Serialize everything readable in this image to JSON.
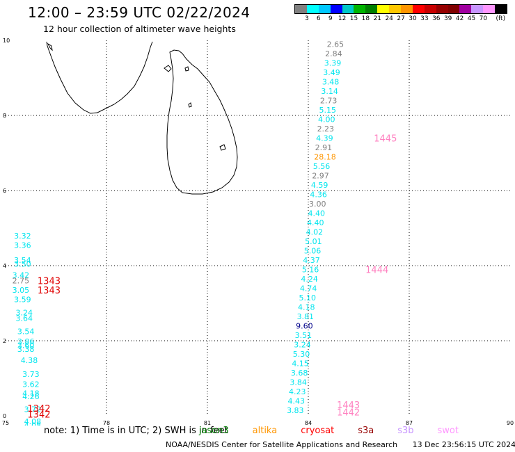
{
  "header": {
    "title": "12:00 – 23:59 UTC 02/22/2024",
    "subtitle": "12 hour collection of altimeter wave heights"
  },
  "colorbar": {
    "colors": [
      "#808080",
      "#00ffff",
      "#00c8ff",
      "#0000ff",
      "#00c8c8",
      "#00b400",
      "#008000",
      "#ffff00",
      "#ffc800",
      "#ff9600",
      "#ff0000",
      "#c80000",
      "#960000",
      "#800000",
      "#a000a0",
      "#c896ff",
      "#ff96ff",
      "#000000"
    ],
    "labels": [
      "3",
      "6",
      "9",
      "12",
      "15",
      "18",
      "21",
      "24",
      "27",
      "30",
      "33",
      "36",
      "39",
      "42",
      "45",
      "70"
    ],
    "unit": "(ft)"
  },
  "axes": {
    "x_ticks": [
      "75",
      "78",
      "81",
      "84",
      "87",
      "90"
    ],
    "y_ticks": [
      "0",
      "2",
      "4",
      "6",
      "8",
      "10"
    ],
    "x_range": [
      75,
      90
    ],
    "y_range": [
      0,
      10
    ]
  },
  "observations": [
    {
      "lon": 84.55,
      "lat": 9.9,
      "text": "2.65",
      "color": "#808080"
    },
    {
      "lon": 84.5,
      "lat": 9.65,
      "text": "2.84",
      "color": "#808080"
    },
    {
      "lon": 84.47,
      "lat": 9.4,
      "text": "3.39",
      "color": "#00e5ee"
    },
    {
      "lon": 84.44,
      "lat": 9.15,
      "text": "3.49",
      "color": "#00e5ee"
    },
    {
      "lon": 84.41,
      "lat": 8.9,
      "text": "3.48",
      "color": "#00e5ee"
    },
    {
      "lon": 84.38,
      "lat": 8.65,
      "text": "3.14",
      "color": "#00e5ee"
    },
    {
      "lon": 84.35,
      "lat": 8.4,
      "text": "2.73",
      "color": "#808080"
    },
    {
      "lon": 84.32,
      "lat": 8.15,
      "text": "5.15",
      "color": "#00e5ee"
    },
    {
      "lon": 84.29,
      "lat": 7.9,
      "text": "4.00",
      "color": "#00e5ee"
    },
    {
      "lon": 84.26,
      "lat": 7.65,
      "text": "2.23",
      "color": "#808080"
    },
    {
      "lon": 84.23,
      "lat": 7.4,
      "text": "4.39",
      "color": "#00e5ee"
    },
    {
      "lon": 84.2,
      "lat": 7.15,
      "text": "2.91",
      "color": "#808080"
    },
    {
      "lon": 84.17,
      "lat": 6.9,
      "text": "28.18",
      "color": "#ff9600"
    },
    {
      "lon": 84.14,
      "lat": 6.65,
      "text": "5.56",
      "color": "#00e5ee"
    },
    {
      "lon": 84.11,
      "lat": 6.4,
      "text": "2.97",
      "color": "#808080"
    },
    {
      "lon": 84.08,
      "lat": 6.15,
      "text": "4.59",
      "color": "#00e5ee"
    },
    {
      "lon": 84.05,
      "lat": 5.9,
      "text": "4.36",
      "color": "#00e5ee"
    },
    {
      "lon": 84.02,
      "lat": 5.65,
      "text": "3.00",
      "color": "#808080"
    },
    {
      "lon": 83.99,
      "lat": 5.4,
      "text": "4.40",
      "color": "#00e5ee"
    },
    {
      "lon": 83.96,
      "lat": 5.15,
      "text": "4.40",
      "color": "#00e5ee"
    },
    {
      "lon": 83.93,
      "lat": 4.9,
      "text": "4.02",
      "color": "#00e5ee"
    },
    {
      "lon": 83.9,
      "lat": 4.65,
      "text": "5.01",
      "color": "#00e5ee"
    },
    {
      "lon": 83.87,
      "lat": 4.4,
      "text": "5.06",
      "color": "#00e5ee"
    },
    {
      "lon": 83.84,
      "lat": 4.15,
      "text": "4.37",
      "color": "#00e5ee"
    },
    {
      "lon": 83.81,
      "lat": 3.9,
      "text": "5.16",
      "color": "#00e5ee"
    },
    {
      "lon": 83.78,
      "lat": 3.65,
      "text": "4.24",
      "color": "#00e5ee"
    },
    {
      "lon": 83.75,
      "lat": 3.4,
      "text": "4.74",
      "color": "#00e5ee"
    },
    {
      "lon": 83.72,
      "lat": 3.15,
      "text": "5.10",
      "color": "#00e5ee"
    },
    {
      "lon": 83.69,
      "lat": 2.9,
      "text": "4.18",
      "color": "#00e5ee"
    },
    {
      "lon": 83.66,
      "lat": 2.65,
      "text": "3.81",
      "color": "#00e5ee"
    },
    {
      "lon": 83.63,
      "lat": 2.4,
      "text": "9.60",
      "color": "#00008b"
    },
    {
      "lon": 83.6,
      "lat": 2.15,
      "text": "3.51",
      "color": "#00e5ee"
    },
    {
      "lon": 83.57,
      "lat": 1.9,
      "text": "3.24",
      "color": "#00e5ee"
    },
    {
      "lon": 83.54,
      "lat": 1.65,
      "text": "5.30",
      "color": "#00e5ee"
    },
    {
      "lon": 83.51,
      "lat": 1.4,
      "text": "4.15",
      "color": "#00e5ee"
    },
    {
      "lon": 83.48,
      "lat": 1.15,
      "text": "3.68",
      "color": "#00e5ee"
    },
    {
      "lon": 83.45,
      "lat": 0.9,
      "text": "3.84",
      "color": "#00e5ee"
    },
    {
      "lon": 83.42,
      "lat": 0.65,
      "text": "4.23",
      "color": "#00e5ee"
    },
    {
      "lon": 83.39,
      "lat": 0.4,
      "text": "4.43",
      "color": "#00e5ee"
    },
    {
      "lon": 83.36,
      "lat": 0.15,
      "text": "3.83",
      "color": "#00e5ee"
    },
    {
      "lon": 75.25,
      "lat": 4.8,
      "text": "3.32",
      "color": "#00e5ee"
    },
    {
      "lon": 75.25,
      "lat": 4.55,
      "text": "3.36",
      "color": "#00e5ee"
    },
    {
      "lon": 75.25,
      "lat": 4.15,
      "text": "3.54",
      "color": "#00e5ee"
    },
    {
      "lon": 75.25,
      "lat": 4.05,
      "text": "3.50",
      "color": "#00e5ee"
    },
    {
      "lon": 75.2,
      "lat": 3.75,
      "text": "3.42",
      "color": "#00e5ee"
    },
    {
      "lon": 75.2,
      "lat": 3.6,
      "text": "2.75",
      "color": "#808080"
    },
    {
      "lon": 75.2,
      "lat": 3.35,
      "text": "3.05",
      "color": "#00e5ee"
    },
    {
      "lon": 75.25,
      "lat": 3.1,
      "text": "3.59",
      "color": "#00e5ee"
    },
    {
      "lon": 75.3,
      "lat": 2.75,
      "text": "3.24",
      "color": "#00e5ee"
    },
    {
      "lon": 75.3,
      "lat": 2.6,
      "text": "3.64",
      "color": "#00e5ee"
    },
    {
      "lon": 75.35,
      "lat": 2.25,
      "text": "3.54",
      "color": "#00e5ee"
    },
    {
      "lon": 75.35,
      "lat": 1.98,
      "text": "3.86",
      "color": "#00e5ee"
    },
    {
      "lon": 75.35,
      "lat": 1.88,
      "text": "3.60",
      "color": "#00e5ee"
    },
    {
      "lon": 75.35,
      "lat": 1.78,
      "text": "3.38",
      "color": "#00e5ee"
    },
    {
      "lon": 75.45,
      "lat": 1.48,
      "text": "4.38",
      "color": "#00e5ee"
    },
    {
      "lon": 75.5,
      "lat": 1.11,
      "text": "3.73",
      "color": "#00e5ee"
    },
    {
      "lon": 75.5,
      "lat": 0.84,
      "text": "3.62",
      "color": "#00e5ee"
    },
    {
      "lon": 75.5,
      "lat": 0.6,
      "text": "4.18",
      "color": "#00e5ee"
    },
    {
      "lon": 75.5,
      "lat": 0.52,
      "text": "4.26",
      "color": "#00e5ee"
    },
    {
      "lon": 75.55,
      "lat": 0.18,
      "text": "3.72",
      "color": "#00e5ee"
    },
    {
      "lon": 75.55,
      "lat": -0.15,
      "text": "4.08",
      "color": "#00e5ee"
    },
    {
      "lon": 75.55,
      "lat": -0.25,
      "text": "4.08",
      "color": "#00e5ee"
    }
  ],
  "pass_labels": [
    {
      "lon": 85.95,
      "lat": 7.4,
      "text": "1445",
      "color": "#ff80c0"
    },
    {
      "lon": 85.7,
      "lat": 3.9,
      "text": "1444",
      "color": "#ff80c0"
    },
    {
      "lon": 84.85,
      "lat": 0.3,
      "text": "1443",
      "color": "#ff80c0"
    },
    {
      "lon": 84.85,
      "lat": 0.1,
      "text": "1442",
      "color": "#ff80c0"
    },
    {
      "lon": 75.95,
      "lat": 3.6,
      "text": "1343",
      "color": "#e00000"
    },
    {
      "lon": 75.95,
      "lat": 3.35,
      "text": "1343",
      "color": "#e00000"
    },
    {
      "lon": 75.65,
      "lat": 0.2,
      "text": "1342",
      "color": "#e00000"
    },
    {
      "lon": 75.65,
      "lat": 0.05,
      "text": "1342",
      "color": "#e00000"
    }
  ],
  "note": {
    "prefix": "note: 1) Time is in UTC; 2) SWH is in feet",
    "satellites": [
      {
        "name": "jason3",
        "color": "#008000"
      },
      {
        "name": "altika",
        "color": "#ff9600"
      },
      {
        "name": "cryosat",
        "color": "#ff0000"
      },
      {
        "name": "s3a",
        "color": "#960000"
      },
      {
        "name": "s3b",
        "color": "#c896ff"
      },
      {
        "name": "swot",
        "color": "#ff96ff"
      }
    ]
  },
  "footer": {
    "credit": "NOAA/NESDIS Center for Satellite Applications and Research",
    "timestamp": "13 Dec 23:56:15 UTC 2024"
  }
}
